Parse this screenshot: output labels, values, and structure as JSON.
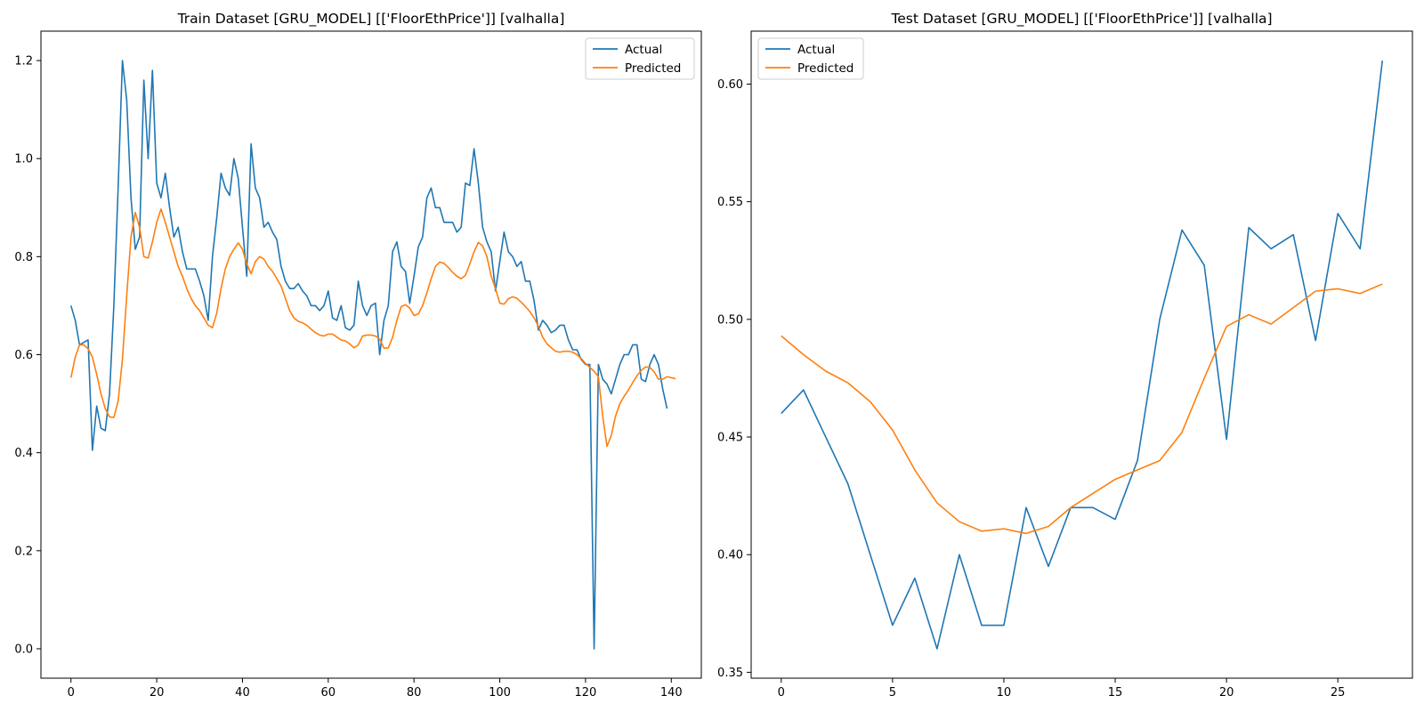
{
  "chart_data": [
    {
      "type": "line",
      "title": "Train Dataset [GRU_MODEL] [['FloorEthPrice']] [valhalla]",
      "xlabel": "",
      "ylabel": "",
      "xlim": [
        -7,
        147
      ],
      "ylim": [
        -0.06,
        1.26
      ],
      "xticks": [
        0,
        20,
        40,
        60,
        80,
        100,
        120,
        140
      ],
      "yticks": [
        0.0,
        0.2,
        0.4,
        0.6,
        0.8,
        1.0,
        1.2
      ],
      "ytick_labels": [
        "0.0",
        "0.2",
        "0.4",
        "0.6",
        "0.8",
        "1.0",
        "1.2"
      ],
      "grid": false,
      "legend": "top-right",
      "series": [
        {
          "name": "Actual",
          "color": "#1f77b4",
          "values": [
            0.7,
            0.67,
            0.62,
            0.625,
            0.63,
            0.405,
            0.495,
            0.45,
            0.445,
            0.52,
            0.7,
            0.94,
            1.2,
            1.12,
            0.92,
            0.815,
            0.84,
            1.16,
            1.0,
            1.18,
            0.95,
            0.92,
            0.97,
            0.9,
            0.84,
            0.86,
            0.81,
            0.775,
            0.775,
            0.775,
            0.75,
            0.72,
            0.67,
            0.8,
            0.88,
            0.97,
            0.94,
            0.925,
            1.0,
            0.96,
            0.86,
            0.76,
            1.03,
            0.94,
            0.92,
            0.86,
            0.87,
            0.85,
            0.835,
            0.78,
            0.75,
            0.735,
            0.735,
            0.745,
            0.73,
            0.72,
            0.7,
            0.7,
            0.69,
            0.7,
            0.73,
            0.675,
            0.67,
            0.7,
            0.655,
            0.65,
            0.66,
            0.75,
            0.7,
            0.68,
            0.7,
            0.705,
            0.6,
            0.67,
            0.7,
            0.81,
            0.83,
            0.78,
            0.77,
            0.705,
            0.76,
            0.82,
            0.84,
            0.92,
            0.94,
            0.9,
            0.9,
            0.87,
            0.87,
            0.87,
            0.85,
            0.86,
            0.95,
            0.945,
            1.02,
            0.95,
            0.86,
            0.83,
            0.81,
            0.73,
            0.79,
            0.85,
            0.81,
            0.8,
            0.78,
            0.79,
            0.75,
            0.75,
            0.71,
            0.65,
            0.67,
            0.66,
            0.645,
            0.65,
            0.66,
            0.66,
            0.63,
            0.61,
            0.61,
            0.59,
            0.58,
            0.58,
            0.0,
            0.58,
            0.55,
            0.54,
            0.52,
            0.55,
            0.58,
            0.6,
            0.6,
            0.62,
            0.62,
            0.55,
            0.545,
            0.58,
            0.6,
            0.58,
            0.53,
            0.49
          ]
        },
        {
          "name": "Predicted",
          "color": "#ff7f0e",
          "values": [
            0.553,
            0.595,
            0.62,
            0.62,
            0.612,
            0.595,
            0.56,
            0.52,
            0.49,
            0.473,
            0.472,
            0.505,
            0.59,
            0.72,
            0.84,
            0.89,
            0.86,
            0.8,
            0.797,
            0.83,
            0.87,
            0.897,
            0.87,
            0.84,
            0.81,
            0.78,
            0.76,
            0.735,
            0.715,
            0.7,
            0.69,
            0.675,
            0.66,
            0.655,
            0.685,
            0.735,
            0.775,
            0.8,
            0.815,
            0.828,
            0.815,
            0.785,
            0.765,
            0.79,
            0.8,
            0.795,
            0.78,
            0.77,
            0.755,
            0.74,
            0.715,
            0.69,
            0.675,
            0.668,
            0.665,
            0.66,
            0.652,
            0.645,
            0.64,
            0.638,
            0.642,
            0.642,
            0.636,
            0.63,
            0.628,
            0.622,
            0.614,
            0.62,
            0.638,
            0.64,
            0.64,
            0.638,
            0.632,
            0.613,
            0.614,
            0.635,
            0.67,
            0.698,
            0.702,
            0.695,
            0.68,
            0.683,
            0.7,
            0.726,
            0.755,
            0.78,
            0.789,
            0.786,
            0.778,
            0.768,
            0.76,
            0.755,
            0.762,
            0.785,
            0.81,
            0.829,
            0.822,
            0.8,
            0.76,
            0.735,
            0.705,
            0.703,
            0.714,
            0.718,
            0.715,
            0.707,
            0.698,
            0.688,
            0.675,
            0.658,
            0.636,
            0.622,
            0.614,
            0.607,
            0.605,
            0.607,
            0.607,
            0.605,
            0.6,
            0.592,
            0.582,
            0.574,
            0.566,
            0.555,
            0.475,
            0.413,
            0.435,
            0.475,
            0.5,
            0.515,
            0.528,
            0.543,
            0.557,
            0.568,
            0.575,
            0.574,
            0.565,
            0.55,
            0.55,
            0.555,
            0.553,
            0.551
          ]
        }
      ]
    },
    {
      "type": "line",
      "title": "Test Dataset [GRU_MODEL] [['FloorEthPrice']] [valhalla]",
      "xlabel": "",
      "ylabel": "",
      "xlim": [
        -1.35,
        28.35
      ],
      "ylim": [
        0.3475,
        0.6225
      ],
      "xticks": [
        0,
        5,
        10,
        15,
        20,
        25
      ],
      "yticks": [
        0.35,
        0.4,
        0.45,
        0.5,
        0.55,
        0.6
      ],
      "ytick_labels": [
        "0.35",
        "0.40",
        "0.45",
        "0.50",
        "0.55",
        "0.60"
      ],
      "grid": false,
      "legend": "top-left",
      "series": [
        {
          "name": "Actual",
          "color": "#1f77b4",
          "values": [
            0.46,
            0.47,
            0.45,
            0.43,
            0.4,
            0.37,
            0.39,
            0.36,
            0.4,
            0.37,
            0.37,
            0.42,
            0.395,
            0.42,
            0.42,
            0.415,
            0.44,
            0.5,
            0.538,
            0.523,
            0.449,
            0.539,
            0.53,
            0.536,
            0.491,
            0.545,
            0.53,
            0.61
          ]
        },
        {
          "name": "Predicted",
          "color": "#ff7f0e",
          "values": [
            0.493,
            0.485,
            0.478,
            0.473,
            0.465,
            0.453,
            0.436,
            0.422,
            0.414,
            0.41,
            0.411,
            0.409,
            0.412,
            0.42,
            0.426,
            0.432,
            0.436,
            0.44,
            0.452,
            0.475,
            0.497,
            0.502,
            0.498,
            0.505,
            0.512,
            0.513,
            0.511,
            0.515
          ]
        }
      ]
    }
  ]
}
